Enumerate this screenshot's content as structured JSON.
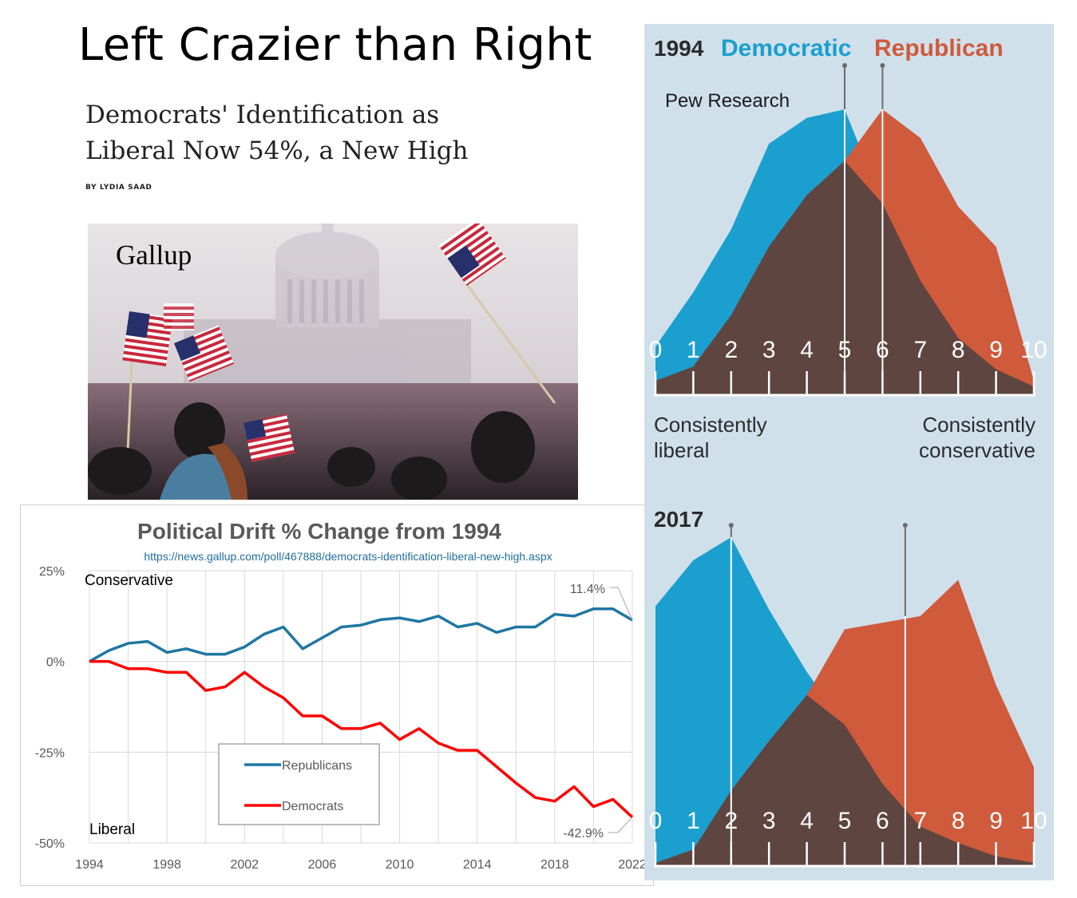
{
  "slide": {
    "title": "Left Crazier than Right"
  },
  "article": {
    "headline_line1": "Democrats' Identification as",
    "headline_line2": "Liberal Now 54%, a New High",
    "byline": "BY LYDIA SAAD"
  },
  "photo": {
    "caption": "Gallup"
  },
  "colors": {
    "republican_line": "#1f77a2",
    "democrat_line": "#ff0000",
    "pew_democratic": "#1a9fcf",
    "pew_republican": "#cf5a3c",
    "pew_overlap": "#5e4540",
    "pew_background": "#d0e0eb"
  },
  "chart_data": [
    {
      "type": "line",
      "title": "Political Drift % Change from 1994",
      "subtitle": "https://news.gallup.com/poll/467888/democrats-identification-liberal-new-high.aspx",
      "xlabel": "",
      "ylabel": "",
      "xlim": [
        1994,
        2022
      ],
      "ylim": [
        -50,
        25
      ],
      "x_ticks": [
        "1994",
        "1998",
        "2002",
        "2006",
        "2010",
        "2014",
        "2018",
        "2022"
      ],
      "y_ticks": [
        "25%",
        "0%",
        "-25%",
        "-50%"
      ],
      "grid": true,
      "legend": "bottom-center",
      "annotations": {
        "top_label": "Conservative",
        "bottom_label": "Liberal",
        "rep_end_label": "11.4%",
        "dem_end_label": "-42.9%"
      },
      "x": [
        1994,
        1995,
        1996,
        1997,
        1998,
        1999,
        2000,
        2001,
        2002,
        2003,
        2004,
        2005,
        2006,
        2007,
        2008,
        2009,
        2010,
        2011,
        2012,
        2013,
        2014,
        2015,
        2016,
        2017,
        2018,
        2019,
        2020,
        2021,
        2022
      ],
      "series": [
        {
          "name": "Republicans",
          "values": [
            0,
            3,
            5,
            5.5,
            2.5,
            3.5,
            2,
            2,
            4,
            7.5,
            9.5,
            3.5,
            6.5,
            9.5,
            10,
            11.5,
            12,
            11,
            12.5,
            9.5,
            10.5,
            8,
            9.5,
            9.5,
            13,
            12.5,
            14.5,
            14.5,
            11.4
          ]
        },
        {
          "name": "Democrats",
          "values": [
            0,
            0,
            -2,
            -2,
            -3,
            -3,
            -8,
            -7,
            -3,
            -7,
            -10,
            -15,
            -15,
            -18.5,
            -18.5,
            -17,
            -21.5,
            -18.5,
            -22.5,
            -24.5,
            -24.5,
            -29,
            -33.5,
            -37.5,
            -38.5,
            -34.5,
            -40,
            -38,
            -42.9
          ]
        }
      ]
    },
    {
      "type": "area",
      "title": "1994",
      "legend_labels": [
        "Democratic",
        "Republican"
      ],
      "source_label": "Pew Research",
      "x_ticks": [
        "0",
        "1",
        "2",
        "3",
        "4",
        "5",
        "6",
        "7",
        "8",
        "9",
        "10"
      ],
      "x_axis_left_label": "Consistently liberal",
      "x_axis_right_label": "Consistently conservative",
      "median_lines": [
        5,
        6
      ],
      "series": [
        {
          "name": "Democratic",
          "values": [
            0.17,
            0.36,
            0.58,
            0.88,
            0.97,
            1.0,
            0.67,
            0.4,
            0.2,
            0.09,
            0.03
          ]
        },
        {
          "name": "Republican",
          "values": [
            0.05,
            0.1,
            0.28,
            0.52,
            0.7,
            0.82,
            1.0,
            0.9,
            0.66,
            0.52,
            0.05
          ]
        }
      ]
    },
    {
      "type": "area",
      "title": "2017",
      "x_ticks": [
        "0",
        "1",
        "2",
        "3",
        "4",
        "5",
        "6",
        "7",
        "8",
        "9",
        "10"
      ],
      "median_lines": [
        2,
        6.6
      ],
      "series": [
        {
          "name": "Democratic",
          "values": [
            0.79,
            0.93,
            1.0,
            0.78,
            0.59,
            0.43,
            0.25,
            0.12,
            0.07,
            0.03,
            0.01
          ]
        },
        {
          "name": "Republican",
          "values": [
            0.01,
            0.05,
            0.23,
            0.38,
            0.52,
            0.72,
            0.74,
            0.76,
            0.87,
            0.55,
            0.3
          ]
        }
      ]
    }
  ]
}
